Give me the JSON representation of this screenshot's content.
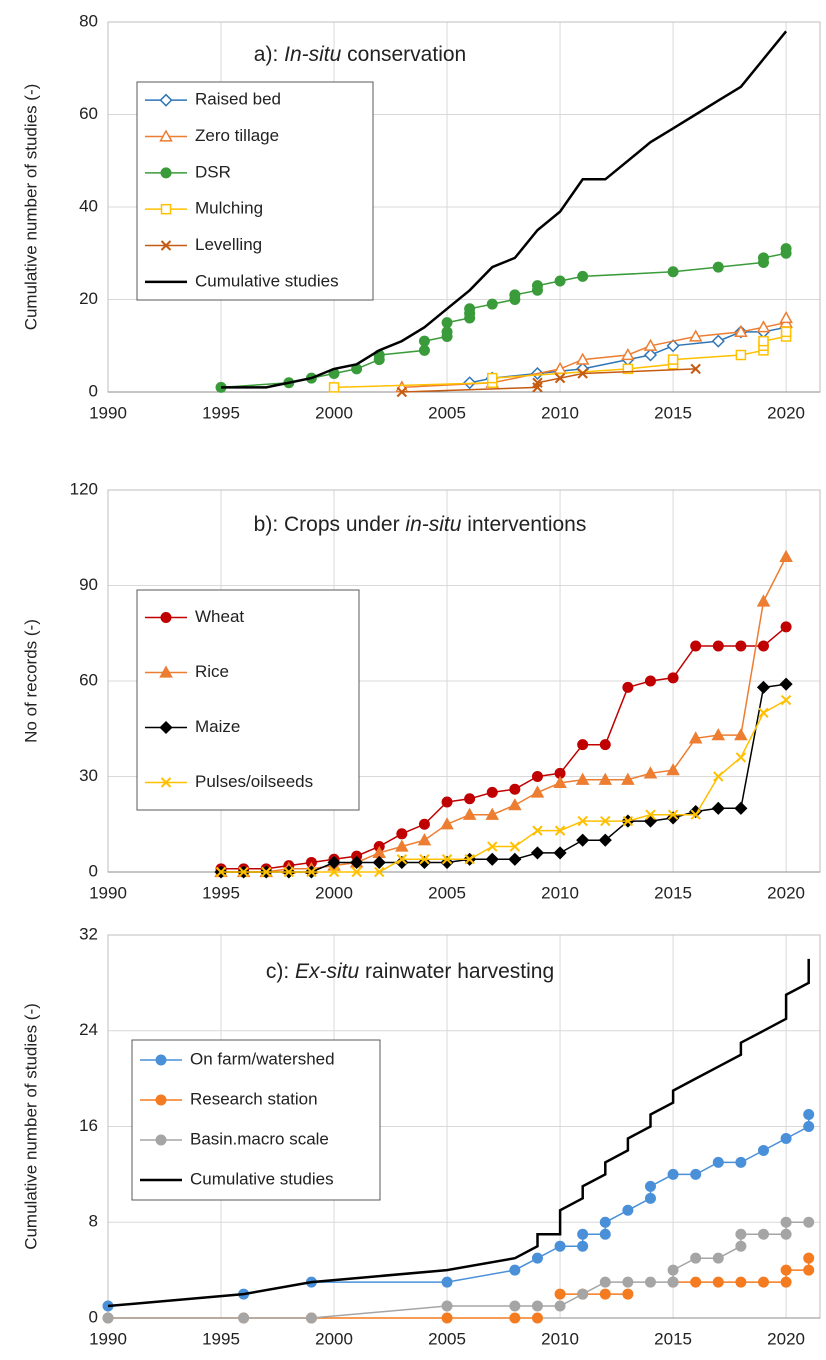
{
  "chart_data": [
    {
      "type": "line",
      "title": [
        "a): ",
        "In-situ",
        " conservation"
      ],
      "ylabel": "Cumulative number of studies (-)",
      "xlim": [
        1990,
        2021.5
      ],
      "xticks": [
        1990,
        1995,
        2000,
        2005,
        2010,
        2015,
        2020
      ],
      "ylim": [
        0,
        80
      ],
      "yticks": [
        0,
        20,
        40,
        60,
        80
      ],
      "grid": true,
      "legend": "upper left",
      "series": [
        {
          "name": "Raised bed",
          "color": "#2e75b6",
          "marker": "diamond-open",
          "x": [
            2006,
            2007,
            2009,
            2011,
            2013,
            2014,
            2015,
            2017,
            2018,
            2019,
            2020
          ],
          "values": [
            2,
            3,
            4,
            5,
            7,
            8,
            10,
            11,
            13,
            13,
            14
          ]
        },
        {
          "name": "Zero tillage",
          "color": "#ed7d31",
          "marker": "triangle-open",
          "x": [
            2003,
            2007,
            2010,
            2011,
            2013,
            2014,
            2016,
            2018,
            2019,
            2020,
            2020
          ],
          "values": [
            1,
            2,
            5,
            7,
            8,
            10,
            12,
            13,
            14,
            15,
            16
          ]
        },
        {
          "name": "DSR",
          "color": "#3a9b3a",
          "marker": "circle-filled",
          "x": [
            1995,
            1998,
            1999,
            2000,
            2001,
            2002,
            2002,
            2004,
            2004,
            2005,
            2005,
            2005,
            2006,
            2006,
            2006,
            2007,
            2008,
            2008,
            2009,
            2009,
            2010,
            2011,
            2015,
            2017,
            2019,
            2019,
            2020,
            2020
          ],
          "values": [
            1,
            2,
            3,
            4,
            5,
            7,
            8,
            9,
            11,
            12,
            13,
            15,
            16,
            17,
            18,
            19,
            20,
            21,
            22,
            23,
            24,
            25,
            26,
            27,
            28,
            29,
            30,
            31
          ]
        },
        {
          "name": "Mulching",
          "color": "#ffc000",
          "marker": "square-open",
          "x": [
            2000,
            2007,
            2007,
            2013,
            2015,
            2015,
            2018,
            2019,
            2019,
            2019,
            2020,
            2020
          ],
          "values": [
            1,
            2,
            3,
            5,
            6,
            7,
            8,
            9,
            10,
            11,
            12,
            13
          ]
        },
        {
          "name": "Levelling",
          "color": "#c55a11",
          "marker": "cross",
          "x": [
            2003,
            2009,
            2009,
            2010,
            2011,
            2016
          ],
          "values": [
            0,
            1,
            2,
            3,
            4,
            5
          ]
        },
        {
          "name": "Cumulative studies",
          "color": "#000000",
          "marker": "none",
          "x": [
            1995,
            1997,
            1999,
            2000,
            2001,
            2002,
            2003,
            2004,
            2005,
            2006,
            2007,
            2008,
            2009,
            2010,
            2011,
            2012,
            2013,
            2014,
            2015,
            2016,
            2017,
            2018,
            2019,
            2020
          ],
          "values": [
            1,
            1,
            3,
            5,
            6,
            9,
            11,
            14,
            18,
            22,
            27,
            29,
            35,
            39,
            46,
            46,
            50,
            54,
            57,
            60,
            63,
            66,
            72,
            78
          ]
        }
      ]
    },
    {
      "type": "line",
      "title": [
        "b): Crops under ",
        "in-situ",
        " interventions"
      ],
      "ylabel": "No of records (-)",
      "xlim": [
        1990,
        2021.5
      ],
      "xticks": [
        1990,
        1995,
        2000,
        2005,
        2010,
        2015,
        2020
      ],
      "ylim": [
        0,
        120
      ],
      "yticks": [
        0,
        30,
        60,
        90,
        120
      ],
      "grid": true,
      "legend": "upper left",
      "x": [
        1995,
        1996,
        1997,
        1998,
        1999,
        2000,
        2001,
        2002,
        2003,
        2004,
        2005,
        2006,
        2007,
        2008,
        2009,
        2010,
        2011,
        2012,
        2013,
        2014,
        2015,
        2016,
        2017,
        2018,
        2019,
        2020
      ],
      "series": [
        {
          "name": "Wheat",
          "color": "#c00000",
          "marker": "circle-filled",
          "values": [
            1,
            1,
            1,
            2,
            3,
            4,
            5,
            8,
            12,
            15,
            22,
            23,
            25,
            26,
            30,
            31,
            40,
            40,
            58,
            60,
            61,
            71,
            71,
            71,
            71,
            77
          ]
        },
        {
          "name": "Rice",
          "color": "#ed7d31",
          "marker": "triangle-filled",
          "values": [
            0,
            0,
            0,
            1,
            1,
            2,
            3,
            6,
            8,
            10,
            15,
            18,
            18,
            21,
            25,
            28,
            29,
            29,
            29,
            31,
            32,
            42,
            43,
            43,
            85,
            99
          ]
        },
        {
          "name": "Maize",
          "color": "#000000",
          "marker": "diamond-filled",
          "values": [
            0,
            0,
            0,
            0,
            0,
            3,
            3,
            3,
            3,
            3,
            3,
            4,
            4,
            4,
            6,
            6,
            10,
            10,
            16,
            16,
            17,
            19,
            20,
            20,
            58,
            59
          ]
        },
        {
          "name": "Pulses/oilseeds",
          "color": "#ffc000",
          "marker": "cross",
          "values": [
            0,
            0,
            0,
            0,
            0,
            0,
            0,
            0,
            4,
            4,
            4,
            4,
            8,
            8,
            13,
            13,
            16,
            16,
            16,
            18,
            18,
            18,
            30,
            36,
            50,
            54
          ]
        }
      ]
    },
    {
      "type": "line",
      "title": [
        "c): ",
        "Ex-situ",
        " rainwater harvesting"
      ],
      "ylabel": "Cumulative number of studies (-)",
      "xlim": [
        1990,
        2021.5
      ],
      "xticks": [
        1990,
        1995,
        2000,
        2005,
        2010,
        2015,
        2020
      ],
      "ylim": [
        0,
        32
      ],
      "yticks": [
        0,
        8,
        16,
        24,
        32
      ],
      "grid": true,
      "legend": "upper left",
      "series": [
        {
          "name": "On farm/watershed",
          "color": "#4a90d9",
          "marker": "circle-filled",
          "x": [
            1990,
            1996,
            1999,
            2005,
            2008,
            2009,
            2010,
            2011,
            2011,
            2012,
            2012,
            2013,
            2014,
            2014,
            2015,
            2016,
            2017,
            2018,
            2019,
            2020,
            2021,
            2021
          ],
          "values": [
            1,
            2,
            3,
            3,
            4,
            5,
            6,
            6,
            7,
            7,
            8,
            9,
            10,
            11,
            12,
            12,
            13,
            13,
            14,
            15,
            16,
            17
          ]
        },
        {
          "name": "Research station",
          "color": "#f47b20",
          "marker": "circle-filled",
          "x": [
            1990,
            1996,
            1999,
            2005,
            2008,
            2009,
            2009.5,
            2010,
            2011,
            2012,
            2013,
            2014,
            2015,
            2016,
            2017,
            2018,
            2019,
            2020,
            2020,
            2021,
            2021
          ],
          "values": [
            0,
            0,
            0,
            0,
            0,
            0,
            null,
            2,
            2,
            2,
            2,
            null,
            3,
            3,
            3,
            3,
            3,
            3,
            4,
            4,
            5
          ]
        },
        {
          "name": "Basin.macro scale",
          "color": "#a5a5a5",
          "marker": "circle-filled",
          "x": [
            1990,
            1996,
            1999,
            2005,
            2008,
            2009,
            2010,
            2011,
            2012,
            2013,
            2014,
            2015,
            2015,
            2016,
            2017,
            2018,
            2018,
            2019,
            2020,
            2020,
            2021
          ],
          "values": [
            0,
            0,
            0,
            1,
            1,
            1,
            1,
            2,
            3,
            3,
            3,
            3,
            4,
            5,
            5,
            6,
            7,
            7,
            7,
            8,
            8
          ]
        },
        {
          "name": "Cumulative studies",
          "color": "#000000",
          "marker": "none",
          "x": [
            1990,
            1996,
            1999,
            2005,
            2008,
            2009,
            2009,
            2010,
            2010,
            2011,
            2011,
            2012,
            2012,
            2013,
            2013,
            2014,
            2014,
            2015,
            2015,
            2016,
            2017,
            2018,
            2018,
            2019,
            2020,
            2020,
            2021,
            2021
          ],
          "values": [
            1,
            2,
            3,
            4,
            5,
            6,
            7,
            7,
            9,
            10,
            11,
            12,
            13,
            14,
            15,
            16,
            17,
            18,
            19,
            20,
            21,
            22,
            23,
            24,
            25,
            27,
            28,
            30
          ]
        }
      ]
    }
  ]
}
